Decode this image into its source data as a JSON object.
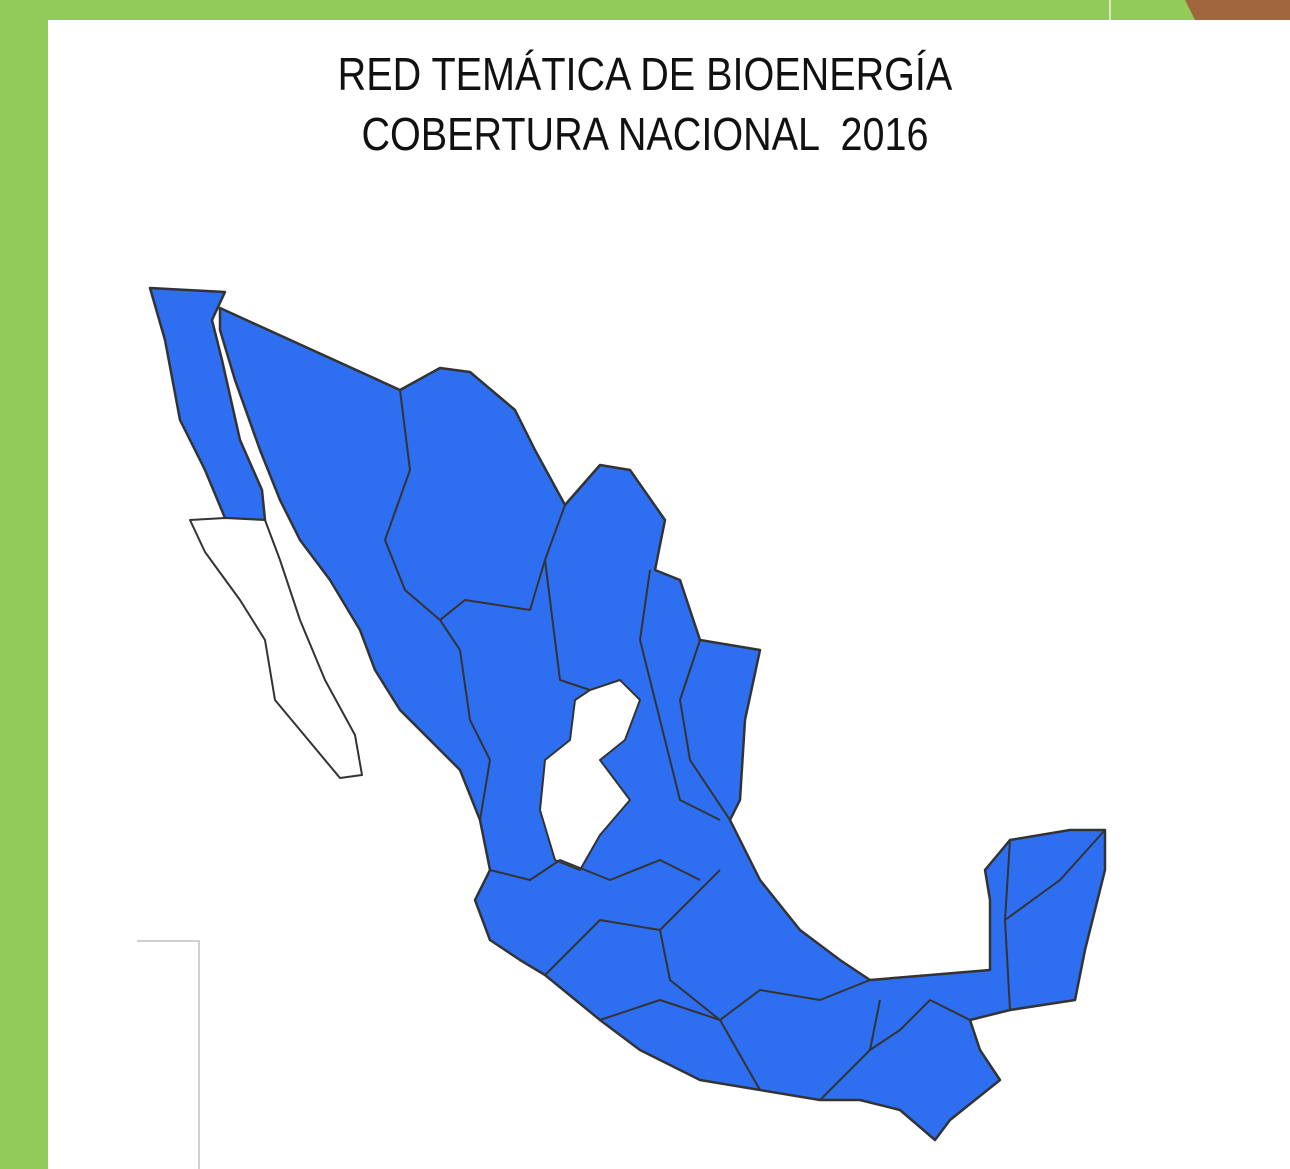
{
  "title": {
    "line1": "RED TEMÁTICA DE BIOENERGÍA",
    "line2": "COBERTURA NACIONAL  2016"
  }
}
